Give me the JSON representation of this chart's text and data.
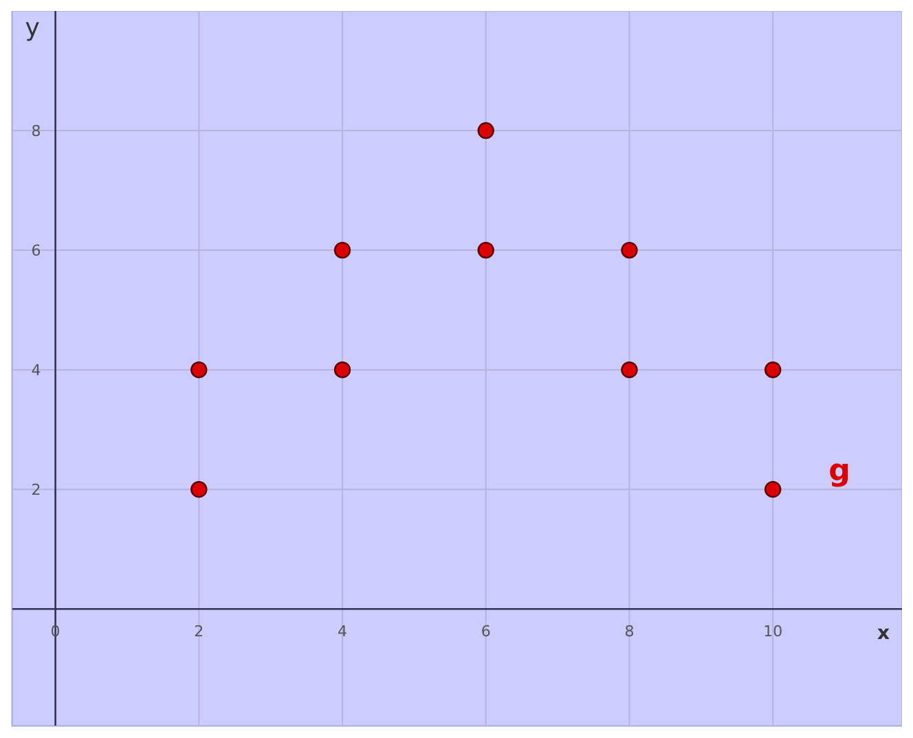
{
  "chart_data": {
    "type": "scatter",
    "xlabel": "x",
    "ylabel": "y",
    "x": [
      2,
      2,
      4,
      4,
      6,
      6,
      8,
      8,
      10,
      10
    ],
    "series": [
      {
        "name": "g",
        "color": "#dd0000",
        "values": [
          2,
          4,
          4,
          6,
          6,
          8,
          6,
          4,
          4,
          2
        ]
      }
    ],
    "xlim": [
      -0.6,
      11.8
    ],
    "ylim": [
      -1.95,
      10
    ],
    "xticks": [
      0,
      2,
      4,
      6,
      8,
      10
    ],
    "yticks": [
      2,
      4,
      6,
      8
    ],
    "grid": true,
    "marker": "circle",
    "legend": false
  }
}
